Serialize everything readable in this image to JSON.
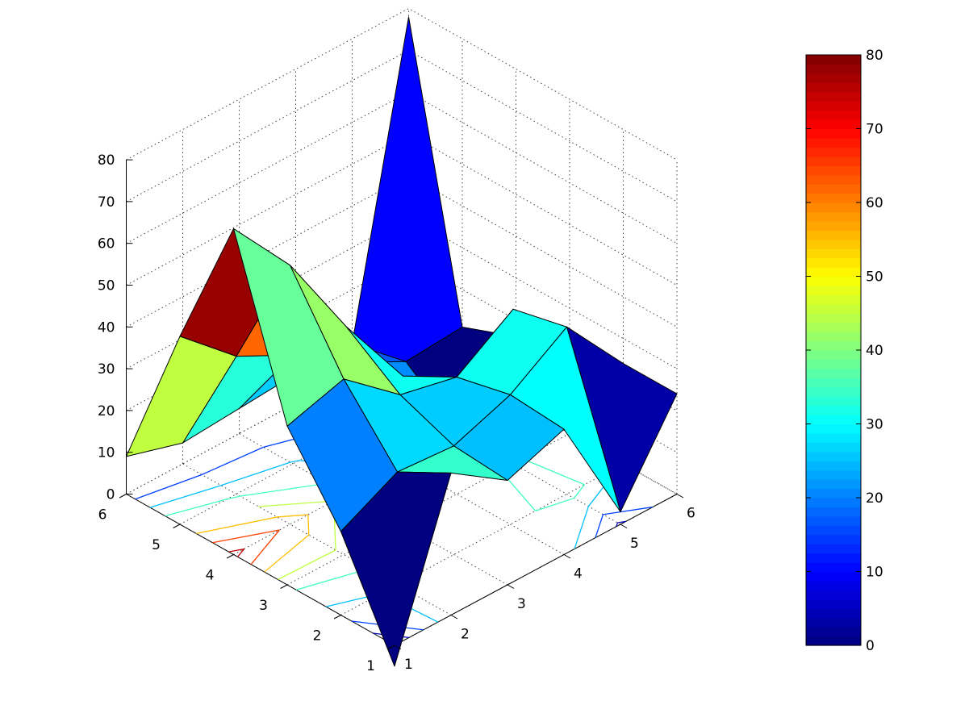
{
  "chart_data": {
    "type": "surfc",
    "title": "",
    "xlabel": "",
    "ylabel": "",
    "zlabel": "",
    "x": [
      1,
      2,
      3,
      4,
      5,
      6
    ],
    "y": [
      1,
      2,
      3,
      4,
      5,
      6
    ],
    "z": [
      [
        -5,
        34,
        25,
        30,
        3,
        24
      ],
      [
        20,
        27,
        26,
        31,
        40,
        24
      ],
      [
        38,
        42,
        31,
        28,
        37,
        25
      ],
      [
        78,
        62,
        40,
        21,
        0,
        16
      ],
      [
        45,
        33,
        26,
        17,
        10,
        11
      ],
      [
        9,
        5,
        6,
        7,
        7,
        78
      ]
    ],
    "xlim": [
      1,
      6
    ],
    "ylim": [
      1,
      6
    ],
    "zlim": [
      0,
      80
    ],
    "x_ticks": [
      "1",
      "2",
      "3",
      "4",
      "5",
      "6"
    ],
    "y_ticks": [
      "1",
      "2",
      "3",
      "4",
      "5",
      "6"
    ],
    "z_ticks": [
      "0",
      "10",
      "20",
      "30",
      "40",
      "50",
      "60",
      "70",
      "80"
    ],
    "colorbar": {
      "colormap": "jet",
      "range": [
        0,
        80
      ],
      "ticks": [
        "0",
        "10",
        "20",
        "30",
        "40",
        "50",
        "60",
        "70",
        "80"
      ]
    },
    "grid": true,
    "contours_on_floor": true
  }
}
